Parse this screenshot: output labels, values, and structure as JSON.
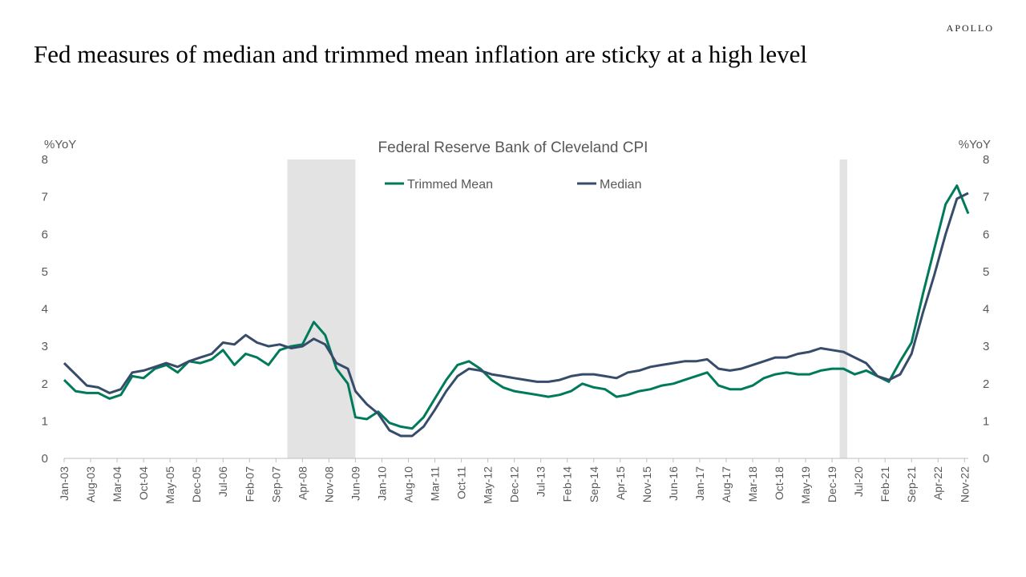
{
  "brand": "APOLLO",
  "headline": "Fed measures of median and trimmed mean inflation are sticky at a high level",
  "chart_data": {
    "type": "line",
    "title": "Federal Reserve Bank of Cleveland CPI",
    "ylabel_left": "%YoY",
    "ylabel_right": "%YoY",
    "ylim": [
      0,
      8
    ],
    "yticks": [
      0,
      1,
      2,
      3,
      4,
      5,
      6,
      7,
      8
    ],
    "xlim": [
      "2003-01",
      "2022-12"
    ],
    "xticks": [
      "Jan-03",
      "Aug-03",
      "Mar-04",
      "Oct-04",
      "May-05",
      "Dec-05",
      "Jul-06",
      "Feb-07",
      "Sep-07",
      "Apr-08",
      "Nov-08",
      "Jun-09",
      "Jan-10",
      "Aug-10",
      "Mar-11",
      "Oct-11",
      "May-12",
      "Dec-12",
      "Jul-13",
      "Feb-14",
      "Sep-14",
      "Apr-15",
      "Nov-15",
      "Jun-16",
      "Jan-17",
      "Aug-17",
      "Mar-18",
      "Oct-18",
      "May-19",
      "Dec-19",
      "Jul-20",
      "Feb-21",
      "Sep-21",
      "Apr-22",
      "Nov-22"
    ],
    "recessions": [
      [
        "2007-12",
        "2009-06"
      ],
      [
        "2020-02",
        "2020-04"
      ]
    ],
    "legend_position": "top-center",
    "grid": false,
    "series": [
      {
        "name": "Trimmed Mean",
        "color": "#007a5a",
        "points": [
          [
            "2003-01",
            2.1
          ],
          [
            "2003-04",
            1.8
          ],
          [
            "2003-07",
            1.75
          ],
          [
            "2003-10",
            1.75
          ],
          [
            "2004-01",
            1.6
          ],
          [
            "2004-04",
            1.7
          ],
          [
            "2004-07",
            2.2
          ],
          [
            "2004-10",
            2.15
          ],
          [
            "2005-01",
            2.4
          ],
          [
            "2005-04",
            2.5
          ],
          [
            "2005-07",
            2.3
          ],
          [
            "2005-10",
            2.6
          ],
          [
            "2006-01",
            2.55
          ],
          [
            "2006-04",
            2.65
          ],
          [
            "2006-07",
            2.9
          ],
          [
            "2006-10",
            2.5
          ],
          [
            "2007-01",
            2.8
          ],
          [
            "2007-04",
            2.7
          ],
          [
            "2007-07",
            2.5
          ],
          [
            "2007-10",
            2.9
          ],
          [
            "2008-01",
            3.0
          ],
          [
            "2008-04",
            3.05
          ],
          [
            "2008-07",
            3.65
          ],
          [
            "2008-10",
            3.3
          ],
          [
            "2009-01",
            2.4
          ],
          [
            "2009-04",
            2.0
          ],
          [
            "2009-06",
            1.1
          ],
          [
            "2009-09",
            1.05
          ],
          [
            "2009-12",
            1.25
          ],
          [
            "2010-03",
            0.95
          ],
          [
            "2010-06",
            0.85
          ],
          [
            "2010-09",
            0.8
          ],
          [
            "2010-12",
            1.1
          ],
          [
            "2011-03",
            1.6
          ],
          [
            "2011-06",
            2.1
          ],
          [
            "2011-09",
            2.5
          ],
          [
            "2011-12",
            2.6
          ],
          [
            "2012-03",
            2.4
          ],
          [
            "2012-06",
            2.1
          ],
          [
            "2012-09",
            1.9
          ],
          [
            "2012-12",
            1.8
          ],
          [
            "2013-03",
            1.75
          ],
          [
            "2013-06",
            1.7
          ],
          [
            "2013-09",
            1.65
          ],
          [
            "2013-12",
            1.7
          ],
          [
            "2014-03",
            1.8
          ],
          [
            "2014-06",
            2.0
          ],
          [
            "2014-09",
            1.9
          ],
          [
            "2014-12",
            1.85
          ],
          [
            "2015-03",
            1.65
          ],
          [
            "2015-06",
            1.7
          ],
          [
            "2015-09",
            1.8
          ],
          [
            "2015-12",
            1.85
          ],
          [
            "2016-03",
            1.95
          ],
          [
            "2016-06",
            2.0
          ],
          [
            "2016-09",
            2.1
          ],
          [
            "2016-12",
            2.2
          ],
          [
            "2017-03",
            2.3
          ],
          [
            "2017-06",
            1.95
          ],
          [
            "2017-09",
            1.85
          ],
          [
            "2017-12",
            1.85
          ],
          [
            "2018-03",
            1.95
          ],
          [
            "2018-06",
            2.15
          ],
          [
            "2018-09",
            2.25
          ],
          [
            "2018-12",
            2.3
          ],
          [
            "2019-03",
            2.25
          ],
          [
            "2019-06",
            2.25
          ],
          [
            "2019-09",
            2.35
          ],
          [
            "2019-12",
            2.4
          ],
          [
            "2020-03",
            2.4
          ],
          [
            "2020-06",
            2.25
          ],
          [
            "2020-09",
            2.35
          ],
          [
            "2020-12",
            2.2
          ],
          [
            "2021-03",
            2.05
          ],
          [
            "2021-06",
            2.6
          ],
          [
            "2021-09",
            3.1
          ],
          [
            "2021-12",
            4.4
          ],
          [
            "2022-03",
            5.6
          ],
          [
            "2022-06",
            6.8
          ],
          [
            "2022-09",
            7.3
          ],
          [
            "2022-12",
            6.55
          ]
        ]
      },
      {
        "name": "Median",
        "color": "#374c6b",
        "points": [
          [
            "2003-01",
            2.55
          ],
          [
            "2003-04",
            2.25
          ],
          [
            "2003-07",
            1.95
          ],
          [
            "2003-10",
            1.9
          ],
          [
            "2004-01",
            1.75
          ],
          [
            "2004-04",
            1.85
          ],
          [
            "2004-07",
            2.3
          ],
          [
            "2004-10",
            2.35
          ],
          [
            "2005-01",
            2.45
          ],
          [
            "2005-04",
            2.55
          ],
          [
            "2005-07",
            2.45
          ],
          [
            "2005-10",
            2.6
          ],
          [
            "2006-01",
            2.7
          ],
          [
            "2006-04",
            2.8
          ],
          [
            "2006-07",
            3.1
          ],
          [
            "2006-10",
            3.05
          ],
          [
            "2007-01",
            3.3
          ],
          [
            "2007-04",
            3.1
          ],
          [
            "2007-07",
            3.0
          ],
          [
            "2007-10",
            3.05
          ],
          [
            "2008-01",
            2.95
          ],
          [
            "2008-04",
            3.0
          ],
          [
            "2008-07",
            3.2
          ],
          [
            "2008-10",
            3.05
          ],
          [
            "2009-01",
            2.55
          ],
          [
            "2009-04",
            2.4
          ],
          [
            "2009-06",
            1.8
          ],
          [
            "2009-09",
            1.45
          ],
          [
            "2009-12",
            1.2
          ],
          [
            "2010-03",
            0.75
          ],
          [
            "2010-06",
            0.6
          ],
          [
            "2010-09",
            0.6
          ],
          [
            "2010-12",
            0.85
          ],
          [
            "2011-03",
            1.3
          ],
          [
            "2011-06",
            1.8
          ],
          [
            "2011-09",
            2.2
          ],
          [
            "2011-12",
            2.4
          ],
          [
            "2012-03",
            2.35
          ],
          [
            "2012-06",
            2.25
          ],
          [
            "2012-09",
            2.2
          ],
          [
            "2012-12",
            2.15
          ],
          [
            "2013-03",
            2.1
          ],
          [
            "2013-06",
            2.05
          ],
          [
            "2013-09",
            2.05
          ],
          [
            "2013-12",
            2.1
          ],
          [
            "2014-03",
            2.2
          ],
          [
            "2014-06",
            2.25
          ],
          [
            "2014-09",
            2.25
          ],
          [
            "2014-12",
            2.2
          ],
          [
            "2015-03",
            2.15
          ],
          [
            "2015-06",
            2.3
          ],
          [
            "2015-09",
            2.35
          ],
          [
            "2015-12",
            2.45
          ],
          [
            "2016-03",
            2.5
          ],
          [
            "2016-06",
            2.55
          ],
          [
            "2016-09",
            2.6
          ],
          [
            "2016-12",
            2.6
          ],
          [
            "2017-03",
            2.65
          ],
          [
            "2017-06",
            2.4
          ],
          [
            "2017-09",
            2.35
          ],
          [
            "2017-12",
            2.4
          ],
          [
            "2018-03",
            2.5
          ],
          [
            "2018-06",
            2.6
          ],
          [
            "2018-09",
            2.7
          ],
          [
            "2018-12",
            2.7
          ],
          [
            "2019-03",
            2.8
          ],
          [
            "2019-06",
            2.85
          ],
          [
            "2019-09",
            2.95
          ],
          [
            "2019-12",
            2.9
          ],
          [
            "2020-03",
            2.85
          ],
          [
            "2020-06",
            2.7
          ],
          [
            "2020-09",
            2.55
          ],
          [
            "2020-12",
            2.2
          ],
          [
            "2021-03",
            2.1
          ],
          [
            "2021-06",
            2.25
          ],
          [
            "2021-09",
            2.8
          ],
          [
            "2021-12",
            3.9
          ],
          [
            "2022-03",
            4.9
          ],
          [
            "2022-06",
            6.0
          ],
          [
            "2022-09",
            6.95
          ],
          [
            "2022-12",
            7.1
          ]
        ]
      }
    ]
  }
}
